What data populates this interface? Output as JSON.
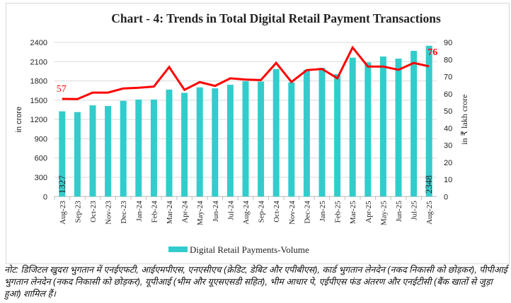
{
  "chart_data": {
    "type": "bar+line",
    "title": "Chart - 4: Trends in Total Digital Retail Payment Transactions",
    "categories": [
      "Aug-23",
      "Sep-23",
      "Oct-23",
      "Nov-23",
      "Dec-23",
      "Jan-24",
      "Feb-24",
      "Mar-24",
      "Apr-24",
      "May-24",
      "Jun-24",
      "Jul-24",
      "Aug-24",
      "Sep-24",
      "Oct-24",
      "Nov-24",
      "Dec-24",
      "Jan-25",
      "Feb-25",
      "Mar-25",
      "Apr-25",
      "May-25",
      "Jun-25",
      "Jul-25",
      "Aug-25"
    ],
    "series": [
      {
        "name": "Digital Retail Payments-Volume",
        "type": "bar",
        "axis": "left",
        "color": "#33cccc",
        "values": [
          1327,
          1315,
          1420,
          1410,
          1490,
          1510,
          1510,
          1665,
          1615,
          1700,
          1685,
          1740,
          1795,
          1790,
          1985,
          1778,
          1971,
          2004,
          1905,
          2162,
          2089,
          2180,
          2147,
          2268,
          2348
        ]
      },
      {
        "type": "line",
        "axis": "right",
        "color": "#ff0000",
        "values": [
          57,
          56.9,
          60.7,
          60.7,
          63.1,
          63.5,
          64.2,
          75.6,
          62.3,
          66.8,
          64.6,
          69,
          68.3,
          68,
          78,
          66.9,
          73.8,
          74.5,
          69.1,
          87,
          75.9,
          75.9,
          74,
          78,
          76
        ]
      }
    ],
    "data_labels": {
      "bar_first": "1327",
      "bar_last": "2348",
      "line_first": "57",
      "line_last": "76"
    },
    "ylabel": "in crore",
    "ylim": [
      0,
      2400
    ],
    "yticks": [
      "0",
      "300",
      "600",
      "900",
      "1200",
      "1500",
      "1800",
      "2100",
      "2400"
    ],
    "y2label": "in ₹ lakh crore",
    "y2lim": [
      0,
      90
    ],
    "y2ticks": [
      "0",
      "10",
      "20",
      "30",
      "40",
      "50",
      "60",
      "70",
      "80",
      "90"
    ],
    "grid": true,
    "legend": "bottom"
  },
  "note": "नोट: डिजिटल खुदरा भुगतान में एनईएफटी, आईएमपीएस, एनएसीएच (क्रेडिट, डेबिट और एपीबीएस), कार्ड भुगतान लेनदेन (नकद निकासी को छोड़कर), पीपीआई भुगतान लेनदेन (नकद निकासी को छोड़कर), यूपीआई (भीम और यूएसएसडी सहित), भीम आधार पे, एईपीएस फंड अंतरण और एनईटीसी (बैंक खातों से जुड़ा हुआ) शामिल हैं।"
}
